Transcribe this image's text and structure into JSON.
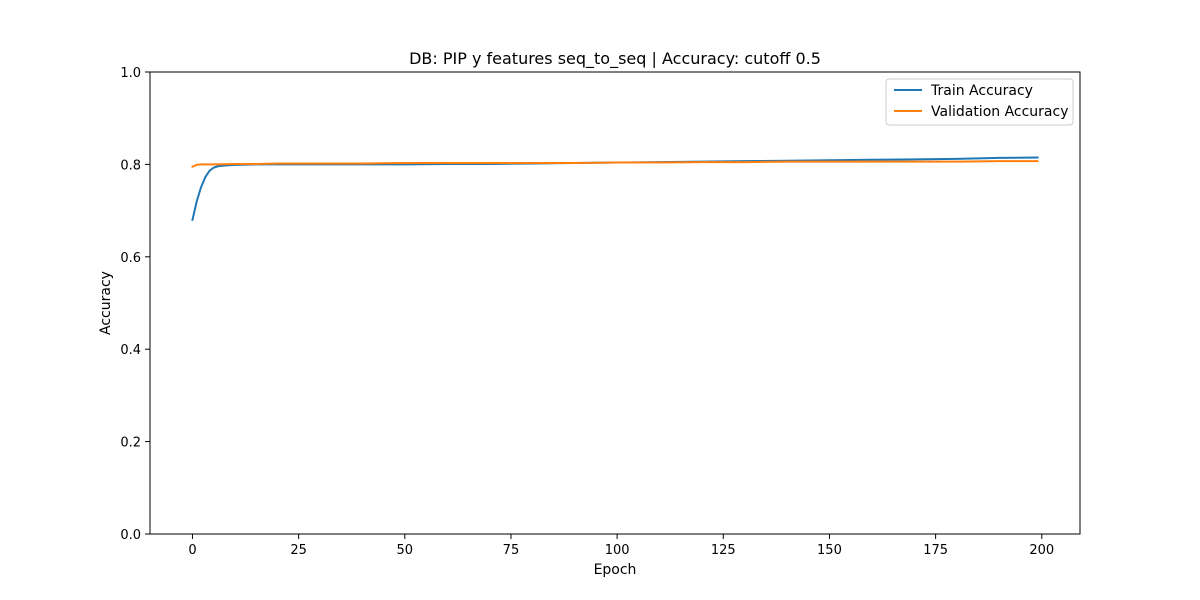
{
  "chart_data": {
    "type": "line",
    "title": "DB: PIP y features seq_to_seq | Accuracy: cutoff 0.5",
    "xlabel": "Epoch",
    "ylabel": "Accuracy",
    "xlim": [
      -10,
      209
    ],
    "ylim": [
      0.0,
      1.0
    ],
    "xticks": [
      0,
      25,
      50,
      75,
      100,
      125,
      150,
      175,
      200
    ],
    "yticks": [
      0.0,
      0.2,
      0.4,
      0.6,
      0.8,
      1.0
    ],
    "xtick_labels": [
      "0",
      "25",
      "50",
      "75",
      "100",
      "125",
      "150",
      "175",
      "200"
    ],
    "ytick_labels": [
      "0.0",
      "0.2",
      "0.4",
      "0.6",
      "0.8",
      "1.0"
    ],
    "grid": false,
    "legend_position": "top-right",
    "series": [
      {
        "name": "Train Accuracy",
        "color": "#1f77b4",
        "x": [
          0,
          1,
          2,
          3,
          4,
          5,
          6,
          7,
          8,
          10,
          15,
          20,
          25,
          30,
          40,
          50,
          60,
          70,
          80,
          90,
          100,
          110,
          120,
          130,
          140,
          150,
          160,
          170,
          180,
          190,
          199
        ],
        "y": [
          0.68,
          0.72,
          0.75,
          0.772,
          0.786,
          0.793,
          0.796,
          0.797,
          0.798,
          0.799,
          0.8,
          0.8,
          0.8,
          0.8,
          0.8,
          0.8,
          0.801,
          0.801,
          0.802,
          0.803,
          0.804,
          0.805,
          0.806,
          0.807,
          0.808,
          0.809,
          0.81,
          0.811,
          0.812,
          0.814,
          0.815
        ]
      },
      {
        "name": "Validation Accuracy",
        "color": "#ff7f0e",
        "x": [
          0,
          1,
          2,
          3,
          5,
          10,
          15,
          20,
          25,
          30,
          40,
          50,
          60,
          70,
          80,
          90,
          100,
          110,
          120,
          130,
          140,
          150,
          160,
          170,
          180,
          190,
          199
        ],
        "y": [
          0.795,
          0.799,
          0.8,
          0.8,
          0.8,
          0.801,
          0.801,
          0.802,
          0.802,
          0.802,
          0.802,
          0.803,
          0.803,
          0.803,
          0.803,
          0.803,
          0.804,
          0.804,
          0.805,
          0.805,
          0.806,
          0.806,
          0.806,
          0.806,
          0.806,
          0.807,
          0.807
        ]
      }
    ]
  }
}
